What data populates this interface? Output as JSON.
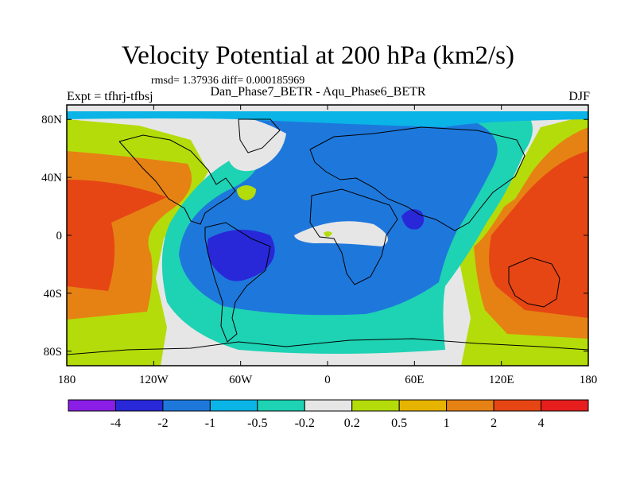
{
  "title": "Velocity Potential at 200 hPa (km2/s)",
  "stats": "rmsd= 1.37936 diff= 0.000185969",
  "subtitle": "Dan_Phase7_BETR - Aqu_Phase6_BETR",
  "left_label": "Expt = tfhrj-tfbsj",
  "right_label": "DJF",
  "map": {
    "lat_ticks": [
      "80N",
      "40N",
      "0",
      "40S",
      "80S"
    ],
    "lat_values": [
      80,
      40,
      0,
      -40,
      -80
    ],
    "lon_ticks": [
      "180",
      "120W",
      "60W",
      "0",
      "60E",
      "120E",
      "180"
    ],
    "lon_values": [
      -180,
      -120,
      -60,
      0,
      60,
      120,
      180
    ],
    "lat_range": [
      -90,
      90
    ],
    "lon_range": [
      -180,
      180
    ]
  },
  "colorbar": {
    "colors": [
      "#8a1ee6",
      "#2828d8",
      "#1e78dc",
      "#0ab4e6",
      "#1ed2b4",
      "#e6e6e6",
      "#b4dc0a",
      "#e6b400",
      "#e68214",
      "#e64614",
      "#e61e1e"
    ],
    "labels": [
      "-4",
      "-2",
      "-1",
      "-0.5",
      "-0.2",
      "0.2",
      "0.5",
      "1",
      "2",
      "4"
    ]
  },
  "colors": {
    "strong_negative": "#2828d8",
    "negative": "#1e78dc",
    "weak_negative": "#0ab4e6",
    "near_zero_negative": "#1ed2b4",
    "neutral": "#e6e6e6",
    "weak_positive": "#b4dc0a",
    "positive": "#e6b400",
    "moderate_positive": "#e68214",
    "strong_positive": "#e64614"
  }
}
